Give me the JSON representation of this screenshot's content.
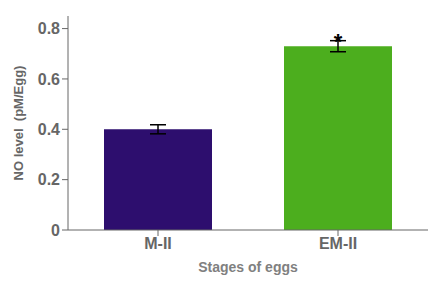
{
  "chart_data": {
    "type": "bar",
    "categories": [
      "M-II",
      "EM-II"
    ],
    "values": [
      0.4,
      0.73
    ],
    "errors": [
      0.018,
      0.022
    ],
    "colors": [
      "#2d0e6e",
      "#4cae1e"
    ],
    "xlabel": "Stages of eggs",
    "ylabel": "NO level  (pM/Egg)",
    "ylim": [
      0,
      0.85
    ],
    "yticks": [
      0,
      0.2,
      0.4,
      0.6,
      0.8
    ],
    "grid": false,
    "annotations": [
      {
        "text": "*",
        "x": "EM-II",
        "y": 0.762
      }
    ]
  }
}
